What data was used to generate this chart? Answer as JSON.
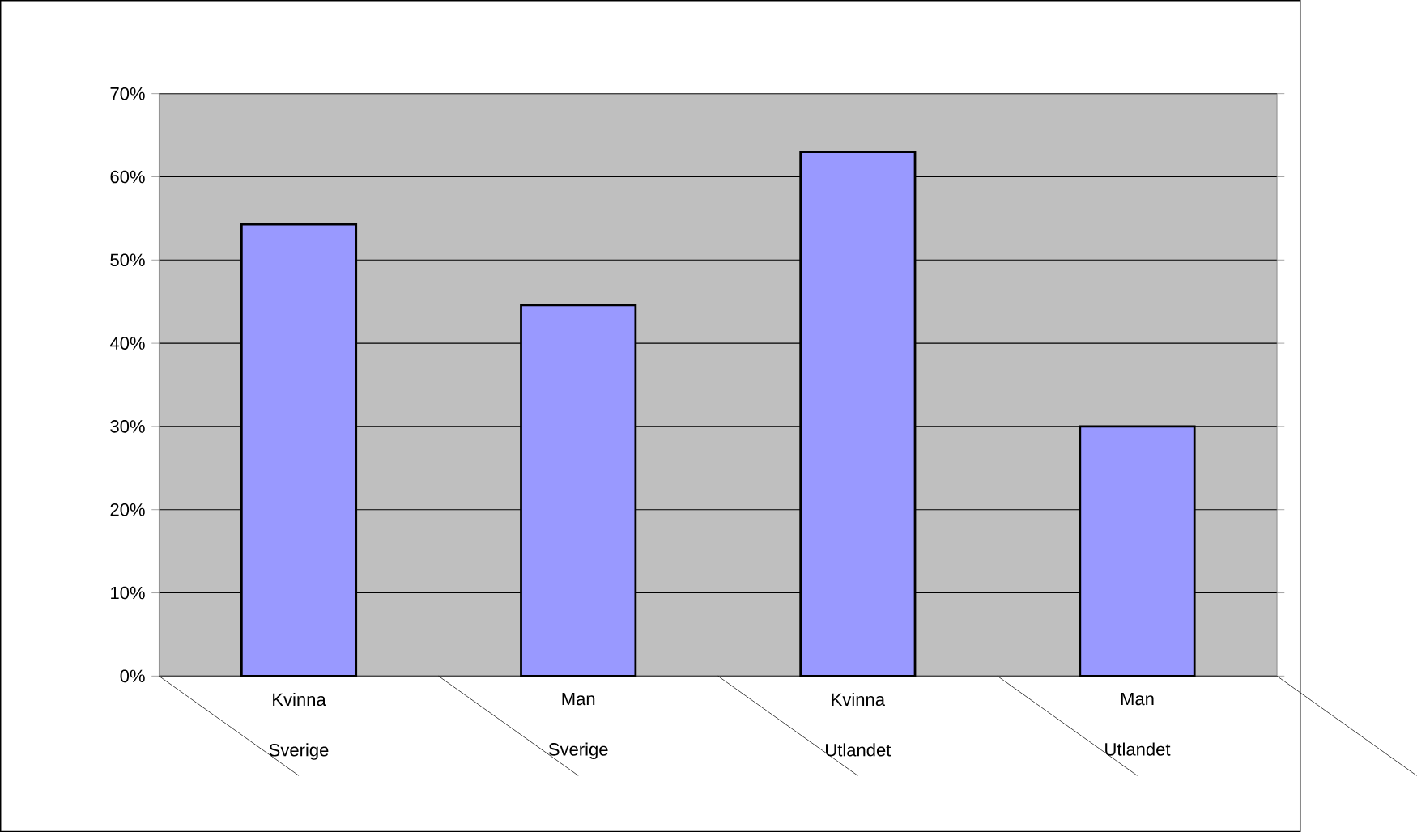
{
  "chart_data": {
    "type": "bar",
    "categories": [
      "Kvinna Sverige",
      "Man Sverige",
      "Kvinna Utlandet",
      "Man Utlandet"
    ],
    "values": [
      54.3,
      44.6,
      63.0,
      30.0
    ],
    "color": "#9999ff",
    "ylim": [
      0,
      70
    ],
    "yticks": [
      {
        "value": 0,
        "label": "0%"
      },
      {
        "value": 10,
        "label": "10%"
      },
      {
        "value": 20,
        "label": "20%"
      },
      {
        "value": 30,
        "label": "30%"
      },
      {
        "value": 40,
        "label": "40%"
      },
      {
        "value": 50,
        "label": "50%"
      },
      {
        "value": 60,
        "label": "60%"
      },
      {
        "value": 70,
        "label": "70%"
      }
    ],
    "grid": "y"
  }
}
